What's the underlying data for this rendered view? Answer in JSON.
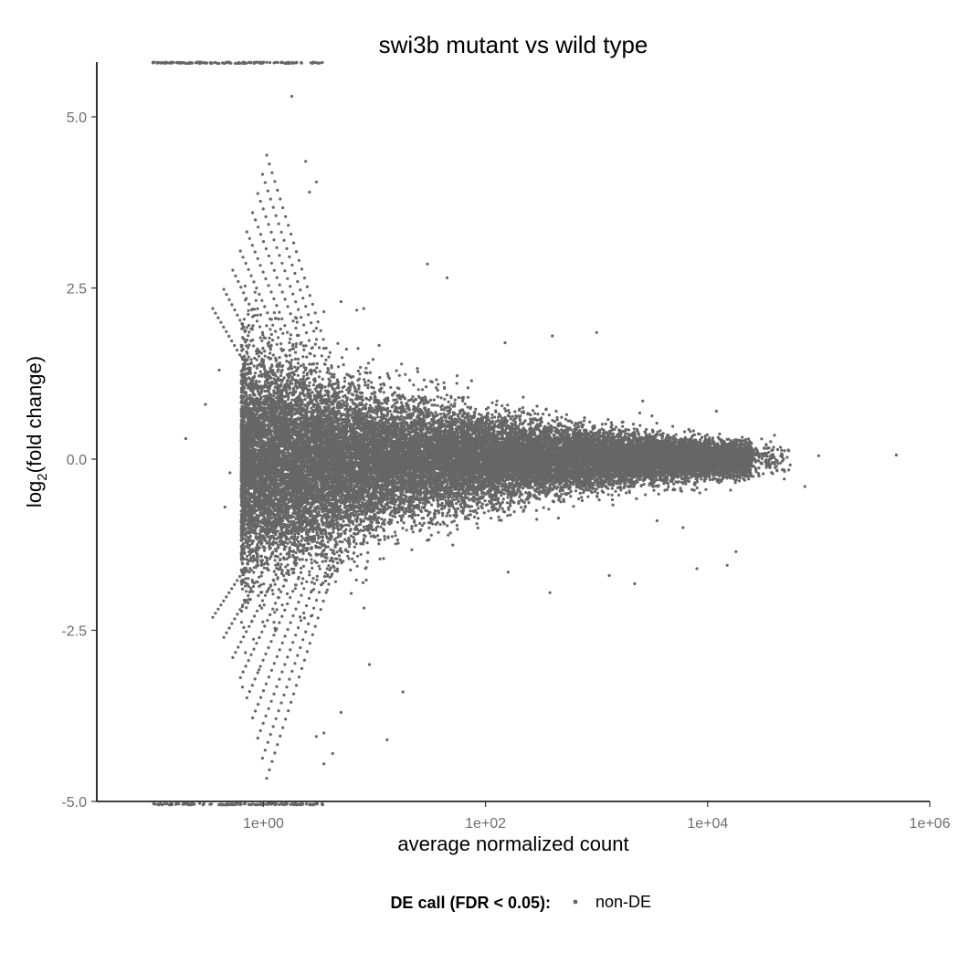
{
  "chart_data": {
    "type": "scatter",
    "title": "swi3b mutant vs wild type",
    "xlabel": "average normalized count",
    "ylabel_main": "log",
    "ylabel_sub": "2",
    "ylabel_rest": "(fold change)",
    "x_scale": "log10",
    "xlim": [
      0.0316,
      1000000
    ],
    "ylim": [
      -5,
      5.8
    ],
    "x_ticks": [
      1,
      100,
      10000,
      1000000
    ],
    "x_tick_labels": [
      "1e+00",
      "1e+02",
      "1e+04",
      "1e+06"
    ],
    "y_ticks": [
      5,
      2.5,
      0,
      -2.5,
      -5
    ],
    "y_tick_labels": [
      "5.0",
      "2.5",
      "0.0",
      "-2.5",
      "-5.0"
    ],
    "grid": false,
    "legend": {
      "placement": "bottom",
      "title": "DE call (FDR < 0.05):",
      "entries": [
        {
          "label": "non-DE",
          "color": "#666666"
        }
      ]
    },
    "series": [
      {
        "name": "non-DE",
        "color": "#666666",
        "points": [
          [
            1.8,
            5.3
          ],
          [
            2.4,
            4.35
          ],
          [
            3.0,
            4.05
          ],
          [
            2.6,
            3.9
          ],
          [
            30,
            2.85
          ],
          [
            45,
            2.65
          ],
          [
            5,
            2.3
          ],
          [
            8,
            2.2
          ],
          [
            0.4,
            1.3
          ],
          [
            0.3,
            0.8
          ],
          [
            0.2,
            0.3
          ],
          [
            1000,
            1.85
          ],
          [
            400,
            1.8
          ],
          [
            150,
            1.7
          ],
          [
            2600,
            0.85
          ],
          [
            6200,
            0.4
          ],
          [
            12000,
            0.7
          ],
          [
            40000,
            0.35
          ],
          [
            100000,
            0.05
          ],
          [
            500000,
            0.06
          ],
          [
            75000,
            -0.4
          ],
          [
            3500,
            -0.9
          ],
          [
            6000,
            -1.0
          ],
          [
            8000,
            -1.6
          ],
          [
            18000,
            -1.35
          ],
          [
            15000,
            -1.55
          ],
          [
            2200,
            -1.82
          ],
          [
            160,
            -1.65
          ],
          [
            380,
            -1.95
          ],
          [
            1300,
            -1.7
          ],
          [
            9,
            -3.0
          ],
          [
            5,
            -3.7
          ],
          [
            3.5,
            -4.0
          ],
          [
            3.5,
            -4.45
          ],
          [
            4.2,
            -4.3
          ],
          [
            3.0,
            -4.05
          ],
          [
            18,
            -3.4
          ],
          [
            13,
            -4.1
          ],
          [
            0.5,
            -0.2
          ],
          [
            0.45,
            -0.7
          ]
        ],
        "note_count": "approx. 30000 points, dense cloud around 0 tapering with increasing count"
      }
    ],
    "top_clipped_band": {
      "y": 5.8,
      "x_range": [
        0.1,
        3.5
      ]
    },
    "bottom_clipped_band": {
      "y": -5.05,
      "x_range": [
        0.1,
        3.5
      ]
    }
  }
}
